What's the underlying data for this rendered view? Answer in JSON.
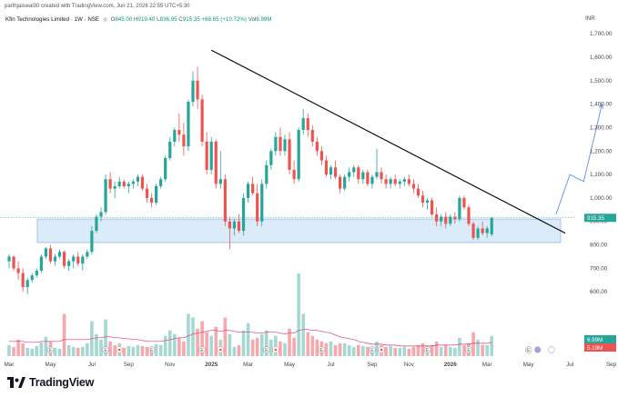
{
  "header": {
    "watermark": "parthjaiswal30 created with TradingView.com, Jun 21, 2026 22:55 UTC+5:30"
  },
  "legend": {
    "symbol": "Kfin Technologies Limited · 1W · NSE",
    "o_label": "O",
    "o_value": "845.00",
    "h_label": "H",
    "h_value": "919.40",
    "l_label": "L",
    "l_value": "836.95",
    "c_label": "C",
    "c_value": "915.35",
    "change": "+88.65 (+10.72%)",
    "vol_label": "Vol",
    "vol_value": "6.99M"
  },
  "brand": {
    "name": "TradingView"
  },
  "colors": {
    "up": "#26a69a",
    "down": "#ef5350",
    "vol_up": "#a5d8d2",
    "vol_down": "#f6a9ad",
    "zone_fill": "#dcebfa",
    "zone_stroke": "#90b8e6",
    "projection": "#5b8def",
    "trendline": "#000000",
    "ma": "#e0357d",
    "price_tag": "#26a69a",
    "ma_tag": "#ef5350"
  },
  "chart_data": {
    "type": "candlestick",
    "currency": "INR",
    "y_axis_ticks": [
      "1,700.00",
      "1,600.00",
      "1,500.00",
      "1,400.00",
      "1,300.00",
      "1,200.00",
      "1,100.00",
      "1,000.00",
      "900.00",
      "800.00",
      "700.00",
      "600.00"
    ],
    "ylim": [
      500,
      1720
    ],
    "x_axis_ticks": [
      {
        "label": "Mar",
        "i": 0
      },
      {
        "label": "May",
        "i": 9
      },
      {
        "label": "Jul",
        "i": 18
      },
      {
        "label": "Sep",
        "i": 26
      },
      {
        "label": "Nov",
        "i": 35
      },
      {
        "label": "2025",
        "i": 44
      },
      {
        "label": "Mar",
        "i": 52
      },
      {
        "label": "May",
        "i": 61
      },
      {
        "label": "Jul",
        "i": 70
      },
      {
        "label": "Sep",
        "i": 79
      },
      {
        "label": "Nov",
        "i": 87
      },
      {
        "label": "2026",
        "i": 96
      },
      {
        "label": "Mar",
        "i": 104
      },
      {
        "label": "May",
        "i": 113
      },
      {
        "label": "Jul",
        "i": 122
      },
      {
        "label": "Sep",
        "i": 131
      }
    ],
    "last_price": 915.35,
    "last_price_label": "915.35",
    "volume_last": "6.99M",
    "volume_ma": "5.19M",
    "zone": {
      "x_start": 0,
      "x_end": 120,
      "y_low": 810,
      "y_high": 910
    },
    "trendline": {
      "x1": 44,
      "y1": 1630,
      "x2": 121,
      "y2": 850
    },
    "projection": [
      [
        119,
        930
      ],
      [
        122,
        1100
      ],
      [
        125,
        1070
      ],
      [
        129,
        1400
      ]
    ],
    "ohlc": [
      [
        730,
        760,
        700,
        750
      ],
      [
        750,
        755,
        690,
        700
      ],
      [
        700,
        730,
        650,
        680
      ],
      [
        680,
        700,
        600,
        620
      ],
      [
        620,
        660,
        590,
        650
      ],
      [
        650,
        680,
        640,
        670
      ],
      [
        670,
        700,
        660,
        690
      ],
      [
        690,
        760,
        680,
        750
      ],
      [
        750,
        790,
        740,
        785
      ],
      [
        785,
        800,
        720,
        730
      ],
      [
        730,
        760,
        710,
        750
      ],
      [
        750,
        780,
        740,
        770
      ],
      [
        770,
        775,
        700,
        710
      ],
      [
        710,
        740,
        690,
        730
      ],
      [
        730,
        760,
        700,
        750
      ],
      [
        750,
        770,
        710,
        720
      ],
      [
        720,
        760,
        690,
        750
      ],
      [
        750,
        780,
        740,
        770
      ],
      [
        770,
        880,
        760,
        860
      ],
      [
        860,
        930,
        850,
        920
      ],
      [
        920,
        960,
        900,
        940
      ],
      [
        940,
        1100,
        930,
        1080
      ],
      [
        1080,
        1110,
        1020,
        1040
      ],
      [
        1040,
        1070,
        1000,
        1050
      ],
      [
        1050,
        1090,
        1040,
        1070
      ],
      [
        1070,
        1080,
        1040,
        1050
      ],
      [
        1050,
        1070,
        1020,
        1060
      ],
      [
        1060,
        1080,
        1040,
        1070
      ],
      [
        1070,
        1100,
        1050,
        1090
      ],
      [
        1090,
        1100,
        1030,
        1040
      ],
      [
        1040,
        1060,
        980,
        1000
      ],
      [
        1000,
        1020,
        960,
        980
      ],
      [
        980,
        1060,
        970,
        1050
      ],
      [
        1050,
        1090,
        1040,
        1080
      ],
      [
        1080,
        1180,
        1070,
        1170
      ],
      [
        1170,
        1260,
        1160,
        1240
      ],
      [
        1240,
        1300,
        1220,
        1290
      ],
      [
        1290,
        1360,
        1240,
        1270
      ],
      [
        1270,
        1320,
        1180,
        1220
      ],
      [
        1220,
        1420,
        1200,
        1410
      ],
      [
        1410,
        1540,
        1390,
        1500
      ],
      [
        1500,
        1560,
        1380,
        1420
      ],
      [
        1420,
        1440,
        1220,
        1240
      ],
      [
        1240,
        1280,
        1100,
        1120
      ],
      [
        1120,
        1260,
        1100,
        1240
      ],
      [
        1240,
        1250,
        1040,
        1060
      ],
      [
        1060,
        1200,
        1040,
        1080
      ],
      [
        1080,
        1100,
        880,
        900
      ],
      [
        900,
        920,
        780,
        870
      ],
      [
        870,
        910,
        840,
        900
      ],
      [
        900,
        930,
        850,
        860
      ],
      [
        860,
        1020,
        840,
        1000
      ],
      [
        1000,
        1070,
        980,
        1060
      ],
      [
        1060,
        1090,
        1010,
        1020
      ],
      [
        1020,
        1060,
        880,
        900
      ],
      [
        900,
        1080,
        880,
        1060
      ],
      [
        1060,
        1160,
        1040,
        1140
      ],
      [
        1140,
        1210,
        1120,
        1200
      ],
      [
        1200,
        1280,
        1180,
        1260
      ],
      [
        1260,
        1300,
        1180,
        1200
      ],
      [
        1200,
        1270,
        1180,
        1250
      ],
      [
        1250,
        1280,
        1100,
        1120
      ],
      [
        1120,
        1160,
        1060,
        1080
      ],
      [
        1080,
        1300,
        1070,
        1290
      ],
      [
        1290,
        1380,
        1270,
        1340
      ],
      [
        1340,
        1360,
        1260,
        1290
      ],
      [
        1290,
        1310,
        1220,
        1240
      ],
      [
        1240,
        1260,
        1180,
        1200
      ],
      [
        1200,
        1220,
        1140,
        1160
      ],
      [
        1160,
        1180,
        1090,
        1100
      ],
      [
        1100,
        1140,
        1080,
        1130
      ],
      [
        1130,
        1160,
        1080,
        1090
      ],
      [
        1090,
        1100,
        1020,
        1040
      ],
      [
        1040,
        1100,
        1030,
        1090
      ],
      [
        1090,
        1130,
        1070,
        1110
      ],
      [
        1110,
        1140,
        1090,
        1130
      ],
      [
        1130,
        1140,
        1060,
        1080
      ],
      [
        1080,
        1120,
        1060,
        1110
      ],
      [
        1110,
        1120,
        1050,
        1060
      ],
      [
        1060,
        1100,
        1040,
        1090
      ],
      [
        1090,
        1210,
        1080,
        1110
      ],
      [
        1110,
        1130,
        1060,
        1080
      ],
      [
        1080,
        1100,
        1040,
        1060
      ],
      [
        1060,
        1090,
        1040,
        1080
      ],
      [
        1080,
        1100,
        1050,
        1060
      ],
      [
        1060,
        1080,
        1040,
        1070
      ],
      [
        1070,
        1090,
        1050,
        1080
      ],
      [
        1080,
        1100,
        1050,
        1060
      ],
      [
        1060,
        1080,
        1020,
        1040
      ],
      [
        1040,
        1060,
        1000,
        1010
      ],
      [
        1010,
        1030,
        960,
        980
      ],
      [
        980,
        1000,
        950,
        990
      ],
      [
        990,
        1000,
        920,
        930
      ],
      [
        930,
        960,
        880,
        900
      ],
      [
        900,
        930,
        880,
        920
      ],
      [
        920,
        940,
        870,
        890
      ],
      [
        890,
        930,
        880,
        920
      ],
      [
        920,
        940,
        890,
        910
      ],
      [
        910,
        1010,
        900,
        1000
      ],
      [
        1000,
        1010,
        950,
        960
      ],
      [
        960,
        970,
        880,
        890
      ],
      [
        890,
        900,
        820,
        830
      ],
      [
        830,
        880,
        820,
        870
      ],
      [
        870,
        900,
        840,
        850
      ],
      [
        850,
        880,
        830,
        870
      ],
      [
        845,
        919.4,
        836.95,
        915.35
      ]
    ],
    "volume": [
      [
        1.2,
        "up"
      ],
      [
        1.0,
        "down"
      ],
      [
        1.8,
        "down"
      ],
      [
        1.4,
        "down"
      ],
      [
        0.9,
        "up"
      ],
      [
        0.8,
        "up"
      ],
      [
        1.1,
        "up"
      ],
      [
        1.5,
        "up"
      ],
      [
        2.1,
        "up"
      ],
      [
        1.6,
        "down"
      ],
      [
        0.9,
        "up"
      ],
      [
        0.8,
        "up"
      ],
      [
        4.6,
        "down"
      ],
      [
        1.2,
        "up"
      ],
      [
        1.0,
        "up"
      ],
      [
        0.9,
        "down"
      ],
      [
        1.0,
        "up"
      ],
      [
        1.4,
        "up"
      ],
      [
        3.8,
        "up"
      ],
      [
        2.4,
        "up"
      ],
      [
        1.8,
        "up"
      ],
      [
        4.0,
        "up"
      ],
      [
        1.6,
        "down"
      ],
      [
        1.2,
        "down"
      ],
      [
        1.4,
        "up"
      ],
      [
        0.9,
        "down"
      ],
      [
        1.1,
        "up"
      ],
      [
        1.0,
        "up"
      ],
      [
        1.2,
        "up"
      ],
      [
        1.1,
        "down"
      ],
      [
        1.0,
        "down"
      ],
      [
        0.9,
        "down"
      ],
      [
        1.3,
        "up"
      ],
      [
        1.2,
        "up"
      ],
      [
        2.2,
        "up"
      ],
      [
        2.8,
        "up"
      ],
      [
        2.4,
        "up"
      ],
      [
        2.0,
        "down"
      ],
      [
        1.6,
        "down"
      ],
      [
        4.6,
        "up"
      ],
      [
        4.2,
        "up"
      ],
      [
        3.0,
        "down"
      ],
      [
        3.8,
        "down"
      ],
      [
        2.6,
        "down"
      ],
      [
        2.2,
        "up"
      ],
      [
        3.2,
        "down"
      ],
      [
        1.8,
        "up"
      ],
      [
        4.2,
        "down"
      ],
      [
        2.4,
        "up"
      ],
      [
        1.0,
        "up"
      ],
      [
        1.2,
        "down"
      ],
      [
        2.8,
        "up"
      ],
      [
        3.6,
        "up"
      ],
      [
        1.8,
        "down"
      ],
      [
        2.0,
        "down"
      ],
      [
        2.4,
        "up"
      ],
      [
        2.8,
        "up"
      ],
      [
        1.8,
        "up"
      ],
      [
        2.2,
        "up"
      ],
      [
        1.6,
        "down"
      ],
      [
        1.4,
        "up"
      ],
      [
        3.0,
        "down"
      ],
      [
        2.0,
        "down"
      ],
      [
        9.0,
        "up"
      ],
      [
        4.6,
        "up"
      ],
      [
        2.6,
        "down"
      ],
      [
        2.2,
        "down"
      ],
      [
        1.8,
        "down"
      ],
      [
        1.6,
        "down"
      ],
      [
        1.4,
        "down"
      ],
      [
        1.6,
        "up"
      ],
      [
        1.2,
        "down"
      ],
      [
        1.4,
        "down"
      ],
      [
        1.4,
        "up"
      ],
      [
        1.2,
        "up"
      ],
      [
        1.0,
        "up"
      ],
      [
        1.2,
        "down"
      ],
      [
        1.1,
        "up"
      ],
      [
        1.0,
        "down"
      ],
      [
        1.0,
        "up"
      ],
      [
        1.6,
        "up"
      ],
      [
        1.2,
        "down"
      ],
      [
        1.0,
        "down"
      ],
      [
        1.1,
        "up"
      ],
      [
        0.9,
        "down"
      ],
      [
        0.9,
        "up"
      ],
      [
        1.0,
        "up"
      ],
      [
        0.8,
        "down"
      ],
      [
        1.0,
        "down"
      ],
      [
        1.2,
        "down"
      ],
      [
        1.4,
        "down"
      ],
      [
        1.0,
        "up"
      ],
      [
        1.2,
        "down"
      ],
      [
        1.6,
        "down"
      ],
      [
        1.0,
        "up"
      ],
      [
        1.2,
        "down"
      ],
      [
        1.0,
        "up"
      ],
      [
        0.9,
        "up"
      ],
      [
        2.0,
        "up"
      ],
      [
        1.2,
        "down"
      ],
      [
        1.4,
        "down"
      ],
      [
        2.6,
        "down"
      ],
      [
        1.8,
        "up"
      ],
      [
        1.2,
        "down"
      ],
      [
        1.2,
        "up"
      ],
      [
        2.2,
        "up"
      ]
    ],
    "volume_max": 9.5,
    "volume_ma_series": [
      1.6,
      1.6,
      1.6,
      1.6,
      1.5,
      1.5,
      1.5,
      1.6,
      1.6,
      1.6,
      1.6,
      1.6,
      1.8,
      1.8,
      1.8,
      1.8,
      1.8,
      1.8,
      1.9,
      2.0,
      2.0,
      2.1,
      2.1,
      2.0,
      2.0,
      1.9,
      1.9,
      1.8,
      1.8,
      1.7,
      1.6,
      1.6,
      1.6,
      1.6,
      1.7,
      1.8,
      1.9,
      2.0,
      2.0,
      2.2,
      2.4,
      2.5,
      2.6,
      2.7,
      2.8,
      2.8,
      2.7,
      2.8,
      2.8,
      2.7,
      2.6,
      2.6,
      2.6,
      2.6,
      2.5,
      2.5,
      2.6,
      2.6,
      2.6,
      2.5,
      2.4,
      2.5,
      2.5,
      2.8,
      2.9,
      2.9,
      2.8,
      2.8,
      2.7,
      2.6,
      2.5,
      2.3,
      2.1,
      2.0,
      1.9,
      1.8,
      1.6,
      1.5,
      1.4,
      1.3,
      1.3,
      1.3,
      1.2,
      1.2,
      1.2,
      1.1,
      1.1,
      1.1,
      1.1,
      1.1,
      1.1,
      1.1,
      1.1,
      1.2,
      1.2,
      1.2,
      1.2,
      1.2,
      1.3,
      1.3,
      1.3,
      1.4,
      1.4,
      1.4,
      1.4,
      1.5
    ]
  }
}
